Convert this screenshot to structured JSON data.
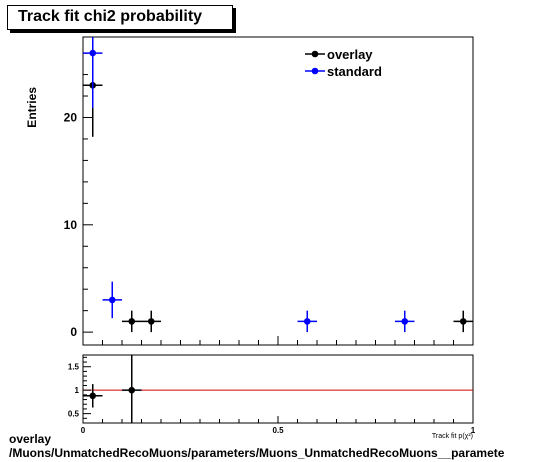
{
  "title": "Track fit chi2 probability",
  "chart_data": {
    "type": "scatter",
    "title": "Track fit chi2 probability",
    "ylabel": "Entries",
    "xlabel": "Track fit p(χ²)",
    "xlim": [
      0,
      1
    ],
    "ylim": [
      -1.2,
      27.5
    ],
    "x_ticks": [
      "0",
      "0.5",
      "1"
    ],
    "y_ticks": [
      "0",
      "10",
      "20"
    ],
    "legend_position": "top-right",
    "series": [
      {
        "name": "overlay",
        "color": "#000000",
        "points": [
          {
            "x": 0.025,
            "xerr": 0.025,
            "y": 23,
            "yerr": 4.8
          },
          {
            "x": 0.125,
            "xerr": 0.025,
            "y": 1,
            "yerr": 1
          },
          {
            "x": 0.175,
            "xerr": 0.025,
            "y": 1,
            "yerr": 1
          },
          {
            "x": 0.975,
            "xerr": 0.025,
            "y": 1,
            "yerr": 1
          }
        ]
      },
      {
        "name": "standard",
        "color": "#0000ff",
        "points": [
          {
            "x": 0.025,
            "xerr": 0.025,
            "y": 26,
            "yerr": 5.1
          },
          {
            "x": 0.075,
            "xerr": 0.025,
            "y": 3,
            "yerr": 1.7
          },
          {
            "x": 0.575,
            "xerr": 0.025,
            "y": 1,
            "yerr": 1
          },
          {
            "x": 0.825,
            "xerr": 0.025,
            "y": 1,
            "yerr": 1
          }
        ]
      }
    ],
    "ratio_panel": {
      "ylim": [
        0.3,
        1.75
      ],
      "y_ticks": [
        "0.5",
        "1",
        "1.5"
      ],
      "reference_line": 1,
      "reference_color": "#cc0000",
      "points": [
        {
          "x": 0.025,
          "xerr": 0.025,
          "y": 0.88,
          "yerr": 0.25
        },
        {
          "x": 0.125,
          "xerr": 0.025,
          "y": 1.0,
          "yerr": 1.0
        }
      ]
    }
  },
  "footer": {
    "line1": "overlay",
    "line2": "/Muons/UnmatchedRecoMuons/parameters/Muons_UnmatchedRecoMuons__paramete"
  }
}
